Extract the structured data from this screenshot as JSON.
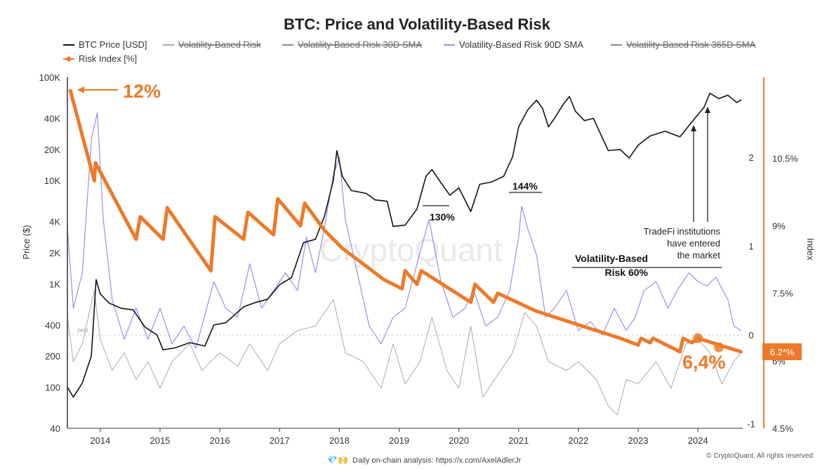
{
  "chart_data": {
    "type": "line",
    "title": "BTC: Price and Volatility-Based Risk",
    "legend": [
      {
        "label": "BTC Price [USD]",
        "color": "#111111",
        "style": "line",
        "struck": false
      },
      {
        "label": "Volatility-Based Risk",
        "color": "#aaaaaa",
        "style": "line",
        "struck": true
      },
      {
        "label": "Volatility-Based Risk 30D SMA",
        "color": "#888888",
        "style": "line",
        "struck": true
      },
      {
        "label": "Volatility-Based Risk 90D SMA",
        "color": "#9b8ee8",
        "style": "line",
        "struck": false
      },
      {
        "label": "Volatility-Based Risk 365D SMA",
        "color": "#888888",
        "style": "line",
        "struck": true
      },
      {
        "label": "Risk Index [%]",
        "color": "#ec7a2a",
        "style": "line-dot",
        "struck": false
      }
    ],
    "legend_placement": "top",
    "x_axis": {
      "ticks": [
        "2014",
        "2015",
        "2016",
        "2017",
        "2018",
        "2019",
        "2020",
        "2021",
        "2022",
        "2023",
        "2024"
      ],
      "range": [
        2013.45,
        2024.75
      ]
    },
    "y_left": {
      "label": "Price ($)",
      "scale": "log",
      "range": [
        40,
        100000
      ],
      "ticks": [
        "100K",
        "40K",
        "20K",
        "10K",
        "4K",
        "2K",
        "1K",
        "400",
        "200",
        "100",
        "40"
      ],
      "tick_values": [
        100000,
        40000,
        20000,
        10000,
        4000,
        2000,
        1000,
        400,
        200,
        100,
        40
      ]
    },
    "y_mid": {
      "range": [
        -1.05,
        2.9
      ],
      "ticks": [
        "2",
        "1",
        "0",
        "-1"
      ],
      "tick_values": [
        2,
        1,
        0,
        -1
      ],
      "zero_label": "zero"
    },
    "y_right": {
      "label": "Index",
      "range": [
        4.5,
        12.3
      ],
      "ticks": [
        "10.5%",
        "9%",
        "7.5%",
        "6%",
        "4.5%"
      ],
      "tick_values": [
        10.5,
        9,
        7.5,
        6,
        4.5
      ],
      "color": "#ec7a2a"
    },
    "series": [
      {
        "name": "BTC Price [USD]",
        "axis": "left",
        "color": "#111111",
        "points": [
          [
            2013.45,
            100
          ],
          [
            2013.55,
            80
          ],
          [
            2013.7,
            110
          ],
          [
            2013.85,
            200
          ],
          [
            2013.93,
            1100
          ],
          [
            2014.0,
            800
          ],
          [
            2014.15,
            650
          ],
          [
            2014.35,
            580
          ],
          [
            2014.55,
            560
          ],
          [
            2014.75,
            380
          ],
          [
            2014.95,
            320
          ],
          [
            2015.05,
            230
          ],
          [
            2015.25,
            240
          ],
          [
            2015.5,
            270
          ],
          [
            2015.75,
            250
          ],
          [
            2015.9,
            400
          ],
          [
            2016.1,
            420
          ],
          [
            2016.4,
            600
          ],
          [
            2016.6,
            660
          ],
          [
            2016.8,
            710
          ],
          [
            2017.0,
            980
          ],
          [
            2017.2,
            1150
          ],
          [
            2017.4,
            2500
          ],
          [
            2017.6,
            2700
          ],
          [
            2017.75,
            4500
          ],
          [
            2017.9,
            10000
          ],
          [
            2017.96,
            19500
          ],
          [
            2018.05,
            11000
          ],
          [
            2018.2,
            8000
          ],
          [
            2018.45,
            7500
          ],
          [
            2018.6,
            6500
          ],
          [
            2018.8,
            6300
          ],
          [
            2018.9,
            3600
          ],
          [
            2019.1,
            3700
          ],
          [
            2019.3,
            5300
          ],
          [
            2019.45,
            11000
          ],
          [
            2019.55,
            12800
          ],
          [
            2019.7,
            9500
          ],
          [
            2019.85,
            7200
          ],
          [
            2020.0,
            8500
          ],
          [
            2020.2,
            5000
          ],
          [
            2020.35,
            9200
          ],
          [
            2020.55,
            9700
          ],
          [
            2020.75,
            11000
          ],
          [
            2020.9,
            17000
          ],
          [
            2021.0,
            33000
          ],
          [
            2021.15,
            48000
          ],
          [
            2021.3,
            60000
          ],
          [
            2021.4,
            50000
          ],
          [
            2021.5,
            33000
          ],
          [
            2021.6,
            40000
          ],
          [
            2021.75,
            55000
          ],
          [
            2021.85,
            65000
          ],
          [
            2021.95,
            47000
          ],
          [
            2022.1,
            38000
          ],
          [
            2022.25,
            40000
          ],
          [
            2022.35,
            30000
          ],
          [
            2022.5,
            19500
          ],
          [
            2022.7,
            20000
          ],
          [
            2022.85,
            16500
          ],
          [
            2023.0,
            22000
          ],
          [
            2023.2,
            27000
          ],
          [
            2023.45,
            30000
          ],
          [
            2023.7,
            26500
          ],
          [
            2023.85,
            34000
          ],
          [
            2023.98,
            42000
          ],
          [
            2024.1,
            51000
          ],
          [
            2024.2,
            70000
          ],
          [
            2024.35,
            62000
          ],
          [
            2024.5,
            67000
          ],
          [
            2024.65,
            57000
          ],
          [
            2024.72,
            60000
          ]
        ]
      },
      {
        "name": "Volatility-Based Risk",
        "axis": "mid",
        "color": "#aaaaaa",
        "points": [
          [
            2013.45,
            0.2
          ],
          [
            2013.55,
            -0.3
          ],
          [
            2013.7,
            -0.1
          ],
          [
            2013.9,
            0.5
          ],
          [
            2014.0,
            -0.05
          ],
          [
            2014.2,
            -0.4
          ],
          [
            2014.4,
            -0.2
          ],
          [
            2014.6,
            -0.5
          ],
          [
            2014.8,
            -0.3
          ],
          [
            2015.0,
            -0.6
          ],
          [
            2015.2,
            -0.3
          ],
          [
            2015.5,
            -0.1
          ],
          [
            2015.7,
            -0.4
          ],
          [
            2016.0,
            -0.2
          ],
          [
            2016.3,
            -0.35
          ],
          [
            2016.5,
            -0.1
          ],
          [
            2016.8,
            -0.4
          ],
          [
            2017.0,
            -0.1
          ],
          [
            2017.3,
            0.05
          ],
          [
            2017.6,
            0.1
          ],
          [
            2017.9,
            0.4
          ],
          [
            2018.1,
            -0.2
          ],
          [
            2018.4,
            -0.3
          ],
          [
            2018.7,
            -0.6
          ],
          [
            2018.9,
            -0.1
          ],
          [
            2019.1,
            -0.55
          ],
          [
            2019.35,
            -0.3
          ],
          [
            2019.55,
            0.2
          ],
          [
            2019.8,
            -0.4
          ],
          [
            2020.0,
            -0.6
          ],
          [
            2020.2,
            0.1
          ],
          [
            2020.4,
            -0.7
          ],
          [
            2020.7,
            -0.4
          ],
          [
            2020.9,
            -0.2
          ],
          [
            2021.1,
            0.25
          ],
          [
            2021.3,
            0.1
          ],
          [
            2021.5,
            -0.3
          ],
          [
            2021.8,
            -0.4
          ],
          [
            2022.0,
            -0.3
          ],
          [
            2022.3,
            -0.5
          ],
          [
            2022.5,
            -0.8
          ],
          [
            2022.65,
            -0.9
          ],
          [
            2022.8,
            -0.5
          ],
          [
            2023.0,
            -0.55
          ],
          [
            2023.3,
            -0.3
          ],
          [
            2023.55,
            -0.6
          ],
          [
            2023.8,
            -0.1
          ],
          [
            2024.0,
            -0.05
          ],
          [
            2024.2,
            -0.2
          ],
          [
            2024.4,
            -0.55
          ],
          [
            2024.6,
            -0.3
          ],
          [
            2024.72,
            -0.2
          ]
        ]
      },
      {
        "name": "Volatility-Based Risk 90D SMA",
        "axis": "mid",
        "color": "#9b8ee8",
        "points": [
          [
            2013.45,
            1.2
          ],
          [
            2013.55,
            0.3
          ],
          [
            2013.7,
            0.7
          ],
          [
            2013.85,
            2.2
          ],
          [
            2013.95,
            2.5
          ],
          [
            2014.05,
            1.3
          ],
          [
            2014.2,
            0.4
          ],
          [
            2014.4,
            -0.05
          ],
          [
            2014.6,
            0.3
          ],
          [
            2014.8,
            -0.05
          ],
          [
            2015.0,
            0.3
          ],
          [
            2015.2,
            -0.1
          ],
          [
            2015.4,
            0.1
          ],
          [
            2015.6,
            -0.15
          ],
          [
            2015.9,
            0.6
          ],
          [
            2016.1,
            0.3
          ],
          [
            2016.3,
            0.2
          ],
          [
            2016.5,
            0.8
          ],
          [
            2016.7,
            0.3
          ],
          [
            2016.9,
            0.5
          ],
          [
            2017.1,
            0.7
          ],
          [
            2017.3,
            0.5
          ],
          [
            2017.45,
            1.1
          ],
          [
            2017.6,
            0.7
          ],
          [
            2017.75,
            1.2
          ],
          [
            2017.9,
            1.8
          ],
          [
            2018.0,
            2.0
          ],
          [
            2018.1,
            1.3
          ],
          [
            2018.3,
            0.7
          ],
          [
            2018.5,
            0.1
          ],
          [
            2018.7,
            -0.1
          ],
          [
            2018.9,
            0.2
          ],
          [
            2019.1,
            0.3
          ],
          [
            2019.3,
            0.8
          ],
          [
            2019.5,
            1.3
          ],
          [
            2019.7,
            0.6
          ],
          [
            2019.9,
            0.2
          ],
          [
            2020.1,
            0.3
          ],
          [
            2020.25,
            0.5
          ],
          [
            2020.45,
            0.1
          ],
          [
            2020.65,
            0.2
          ],
          [
            2020.85,
            0.5
          ],
          [
            2021.0,
            1.1
          ],
          [
            2021.05,
            1.45
          ],
          [
            2021.15,
            1.2
          ],
          [
            2021.3,
            0.9
          ],
          [
            2021.45,
            0.2
          ],
          [
            2021.6,
            0.3
          ],
          [
            2021.8,
            0.5
          ],
          [
            2022.0,
            0.05
          ],
          [
            2022.2,
            0.15
          ],
          [
            2022.4,
            0.0
          ],
          [
            2022.6,
            0.3
          ],
          [
            2022.8,
            0.05
          ],
          [
            2022.95,
            0.2
          ],
          [
            2023.1,
            0.5
          ],
          [
            2023.3,
            0.6
          ],
          [
            2023.5,
            0.3
          ],
          [
            2023.65,
            0.5
          ],
          [
            2023.85,
            0.7
          ],
          [
            2024.0,
            0.6
          ],
          [
            2024.15,
            0.55
          ],
          [
            2024.3,
            0.65
          ],
          [
            2024.5,
            0.4
          ],
          [
            2024.6,
            0.1
          ],
          [
            2024.72,
            0.05
          ]
        ]
      },
      {
        "name": "Risk Index [%]",
        "axis": "right",
        "color": "#ec7a2a",
        "points": [
          [
            2013.5,
            12.0
          ],
          [
            2013.9,
            10.0
          ],
          [
            2013.92,
            10.4
          ],
          [
            2014.6,
            8.7
          ],
          [
            2014.67,
            9.2
          ],
          [
            2015.05,
            8.7
          ],
          [
            2015.12,
            9.4
          ],
          [
            2015.85,
            8.0
          ],
          [
            2015.92,
            9.2
          ],
          [
            2016.4,
            8.7
          ],
          [
            2016.47,
            9.3
          ],
          [
            2016.9,
            8.8
          ],
          [
            2016.97,
            9.6
          ],
          [
            2017.35,
            9.0
          ],
          [
            2017.42,
            9.5
          ],
          [
            2017.75,
            8.9
          ],
          [
            2018.05,
            8.5
          ],
          [
            2018.45,
            8.1
          ],
          [
            2018.75,
            7.8
          ],
          [
            2019.05,
            7.6
          ],
          [
            2019.1,
            8.0
          ],
          [
            2019.3,
            7.7
          ],
          [
            2019.37,
            8.0
          ],
          [
            2020.2,
            7.3
          ],
          [
            2020.27,
            7.7
          ],
          [
            2020.58,
            7.3
          ],
          [
            2020.65,
            7.5
          ],
          [
            2021.3,
            7.1
          ],
          [
            2022.0,
            6.8
          ],
          [
            2022.7,
            6.5
          ],
          [
            2023.0,
            6.35
          ],
          [
            2023.05,
            6.5
          ],
          [
            2023.2,
            6.4
          ],
          [
            2023.25,
            6.5
          ],
          [
            2023.7,
            6.2
          ],
          [
            2023.75,
            6.5
          ],
          [
            2023.9,
            6.4
          ],
          [
            2024.0,
            6.5
          ],
          [
            2024.72,
            6.2
          ]
        ]
      }
    ],
    "annotations": {
      "start_pct": "12%",
      "end_pct": "6,4%",
      "peak_130": "130%",
      "peak_144": "144%",
      "tradefi_1": "TradeFi institutions",
      "tradefi_2": "have entered",
      "tradefi_3": "the market",
      "vbr_1": "Volatility-Based",
      "vbr_2": "Risk 60%",
      "current_badge": "6.2*%"
    }
  },
  "footer": {
    "text": "Daily on-chain analysis: https://x.com/AxelAdlerJr",
    "copyright": "© CryptoQuant. All rights reserved"
  },
  "watermark": "CryptoQuant"
}
